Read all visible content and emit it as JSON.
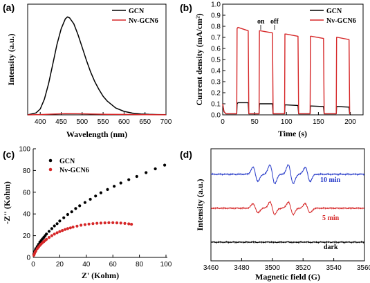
{
  "chart_data": [
    {
      "panel": "(a)",
      "type": "line",
      "xlabel": "Wavelength (nm)",
      "ylabel": "Intensity (a.u.)",
      "xlim": [
        370,
        700
      ],
      "xticks": [
        400,
        450,
        500,
        550,
        600,
        650,
        700
      ],
      "ylim": [
        0,
        1.0
      ],
      "legend": "top-right",
      "series": [
        {
          "name": "GCN",
          "color": "#000000",
          "x": [
            370,
            390,
            400,
            410,
            420,
            430,
            440,
            450,
            460,
            465,
            470,
            480,
            490,
            500,
            510,
            520,
            530,
            540,
            550,
            560,
            580,
            600,
            620,
            640,
            660,
            680,
            700
          ],
          "y": [
            0.0,
            0.02,
            0.06,
            0.16,
            0.32,
            0.52,
            0.72,
            0.88,
            0.98,
            1.0,
            0.99,
            0.93,
            0.82,
            0.69,
            0.56,
            0.44,
            0.34,
            0.26,
            0.19,
            0.14,
            0.07,
            0.035,
            0.018,
            0.009,
            0.005,
            0.003,
            0.002
          ]
        },
        {
          "name": "Nv-GCN6",
          "color": "#d62728",
          "x": [
            370,
            400,
            430,
            460,
            490,
            520,
            560,
            600,
            650,
            700
          ],
          "y": [
            0.0,
            0.003,
            0.008,
            0.012,
            0.011,
            0.009,
            0.006,
            0.004,
            0.002,
            0.001
          ]
        }
      ]
    },
    {
      "panel": "(b)",
      "type": "line",
      "xlabel": "Time (s)",
      "ylabel": "Current density (mA/cm²)",
      "xlim": [
        0,
        220
      ],
      "xticks": [
        0,
        50,
        100,
        150,
        200
      ],
      "ylim": [
        0,
        1.0
      ],
      "yticks": [
        0.0,
        0.1,
        0.2,
        0.3,
        0.4,
        0.5,
        0.6,
        0.7,
        0.8,
        0.9,
        1.0
      ],
      "legend": "top-right",
      "annotations": [
        "on",
        "off"
      ],
      "series": [
        {
          "name": "GCN",
          "color": "#000000",
          "x": [
            0,
            2,
            5,
            22,
            22.5,
            24,
            40,
            41,
            42,
            57,
            57.5,
            59,
            78,
            79,
            80,
            97,
            97.5,
            99,
            118,
            119,
            120,
            137,
            137.5,
            139,
            158,
            159,
            160,
            178,
            178.5,
            180,
            198,
            199,
            200
          ],
          "y": [
            0.1,
            0.03,
            0.01,
            0.01,
            0.1,
            0.11,
            0.11,
            0.01,
            0.01,
            0.01,
            0.1,
            0.1,
            0.1,
            0.01,
            0.01,
            0.01,
            0.09,
            0.09,
            0.085,
            0.01,
            0.01,
            0.01,
            0.08,
            0.08,
            0.075,
            0.01,
            0.01,
            0.01,
            0.075,
            0.075,
            0.07,
            0.01,
            0.01
          ]
        },
        {
          "name": "Nv-GCN6",
          "color": "#d62728",
          "x": [
            0,
            2,
            5,
            22,
            22.5,
            24,
            40,
            41,
            42,
            57,
            57.5,
            59,
            78,
            79,
            80,
            97,
            97.5,
            99,
            118,
            119,
            120,
            137,
            137.5,
            139,
            158,
            159,
            160,
            178,
            178.5,
            180,
            198,
            199,
            200
          ],
          "y": [
            0.1,
            0.03,
            0.01,
            0.01,
            0.78,
            0.79,
            0.76,
            0.01,
            0.01,
            0.01,
            0.76,
            0.76,
            0.74,
            0.01,
            0.01,
            0.01,
            0.73,
            0.73,
            0.71,
            0.01,
            0.01,
            0.01,
            0.71,
            0.71,
            0.69,
            0.01,
            0.01,
            0.01,
            0.7,
            0.7,
            0.68,
            0.01,
            0.01
          ]
        }
      ]
    },
    {
      "panel": "(c)",
      "type": "scatter",
      "xlabel": "Z' (Kohm)",
      "ylabel": "-Z'' (Kohm)",
      "xlim": [
        0,
        100
      ],
      "xticks": [
        0,
        20,
        40,
        60,
        80,
        100
      ],
      "ylim": [
        0,
        100
      ],
      "yticks": [
        0,
        20,
        40,
        60,
        80,
        100
      ],
      "legend": "top-left",
      "series": [
        {
          "name": "GCN",
          "color": "#000000",
          "x": [
            0.5,
            1,
            1.5,
            2,
            3,
            4,
            5,
            6,
            7,
            8,
            9,
            10,
            12,
            14,
            16,
            18,
            20,
            23,
            26,
            29,
            32,
            35,
            39,
            43,
            47,
            51,
            56,
            61,
            66,
            72,
            78,
            85,
            92,
            99
          ],
          "y": [
            3,
            5,
            6.5,
            8,
            10,
            12,
            14,
            15.5,
            17,
            18.5,
            20,
            21.5,
            24,
            26.5,
            29,
            31,
            33.5,
            36.5,
            39.5,
            42,
            45,
            47.5,
            50.5,
            53.5,
            56.5,
            59.5,
            62.5,
            65.5,
            68.5,
            71.5,
            74.5,
            78,
            81.5,
            85
          ]
        },
        {
          "name": "Nv-GCN6",
          "color": "#d62728",
          "x": [
            0.5,
            1,
            1.5,
            2,
            3,
            4,
            5,
            6,
            7,
            8,
            9,
            10,
            12,
            14,
            16,
            18,
            20,
            22,
            24,
            26,
            28,
            30,
            33,
            36,
            39,
            42,
            45,
            48,
            51,
            54,
            57,
            60,
            63,
            66,
            69,
            72,
            74
          ],
          "y": [
            2,
            3.5,
            5,
            6,
            8,
            9.5,
            11,
            12.3,
            13.5,
            14.6,
            15.6,
            16.6,
            18.4,
            20,
            21.4,
            22.7,
            23.8,
            24.8,
            25.7,
            26.5,
            27.2,
            27.9,
            28.8,
            29.6,
            30.2,
            30.7,
            31.1,
            31.4,
            31.6,
            31.8,
            31.9,
            31.9,
            31.8,
            31.6,
            31.3,
            30.9,
            30.5
          ]
        }
      ]
    },
    {
      "panel": "(d)",
      "type": "line",
      "xlabel": "Magnetic field (G)",
      "ylabel": "Intensity (a.u.)",
      "xlim": [
        3460,
        3560
      ],
      "xticks": [
        3460,
        3480,
        3500,
        3520,
        3540,
        3560
      ],
      "peaks": [
        3489,
        3500,
        3512,
        3523
      ],
      "series": [
        {
          "name": "10 min",
          "color": "#2438c8",
          "offset": 2.0,
          "amplitude": 1.0
        },
        {
          "name": "5 min",
          "color": "#d62728",
          "offset": 1.0,
          "amplitude": 0.65
        },
        {
          "name": "dark",
          "color": "#000000",
          "offset": 0.0,
          "amplitude": 0.02
        }
      ]
    }
  ]
}
